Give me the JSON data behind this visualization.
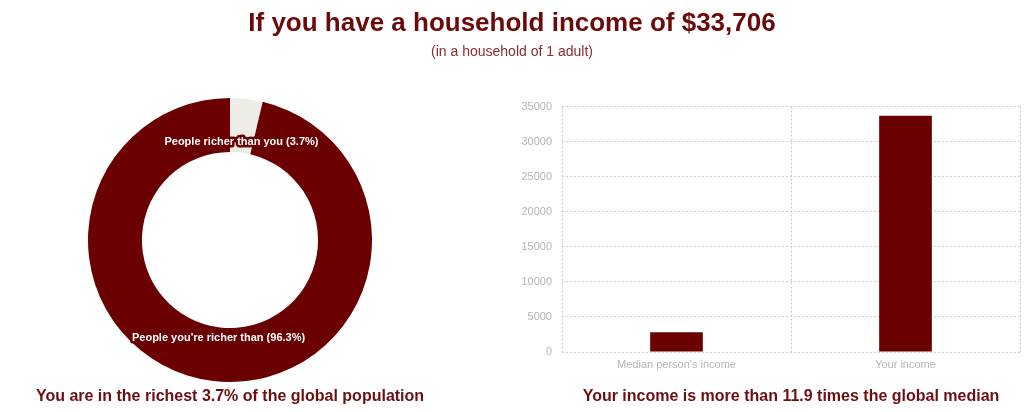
{
  "chart_data": [
    {
      "type": "donut",
      "title": "If you have a household income of $33,706",
      "subtitle": "(in a household of 1 adult)",
      "categories": [
        "People richer than you (3.7%)",
        "People you're richer than (96.3%)"
      ],
      "values": [
        3.7,
        96.3
      ],
      "colors": [
        "#edece6",
        "#6b0000"
      ],
      "annotations": [
        "You are in the richest 3.7% of the global population"
      ]
    },
    {
      "type": "bar",
      "categories": [
        "Median person's income",
        "Your income"
      ],
      "values": [
        2800,
        33700
      ],
      "color": "#6b0000",
      "ylim": [
        0,
        35000
      ],
      "yticks": [
        0,
        5000,
        10000,
        15000,
        20000,
        25000,
        30000,
        35000
      ],
      "grid": true,
      "annotations": [
        "Your income is more than 11.9 times the global median"
      ]
    }
  ]
}
